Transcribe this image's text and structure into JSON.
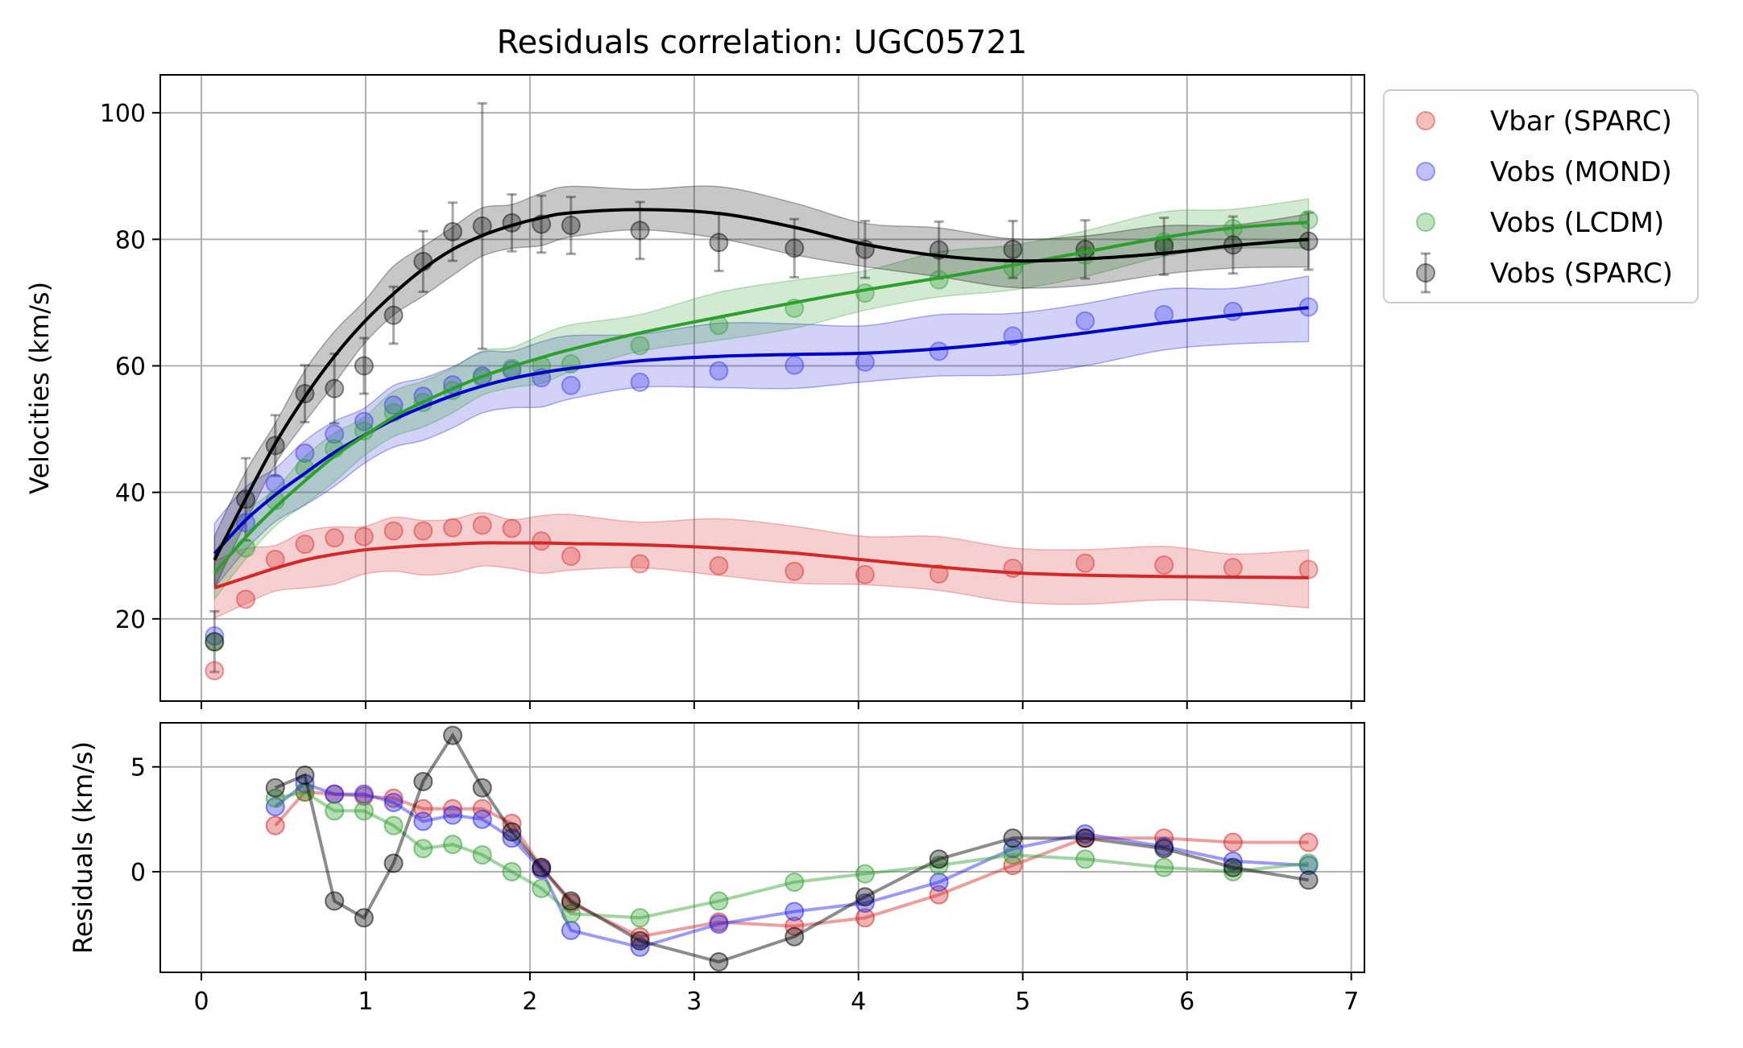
{
  "chart_data": {
    "type": "scatter",
    "title": "Residuals correlation: UGC05721",
    "x": [
      0.08,
      0.27,
      0.45,
      0.63,
      0.81,
      0.99,
      1.17,
      1.35,
      1.53,
      1.71,
      1.89,
      2.07,
      2.25,
      2.67,
      3.15,
      3.61,
      4.04,
      4.49,
      4.94,
      5.38,
      5.86,
      6.28,
      6.74
    ],
    "top_panel": {
      "ylabel": "Velocities (km/s)",
      "ylim": [
        7,
        106
      ],
      "yticks": [
        20,
        40,
        60,
        80,
        100
      ],
      "series": [
        {
          "name": "Vbar (SPARC)",
          "color": "#d62728",
          "points": [
            11.8,
            23.1,
            29.4,
            31.8,
            32.8,
            33.0,
            33.9,
            33.9,
            34.4,
            34.8,
            34.3,
            32.3,
            29.9,
            28.7,
            28.4,
            27.5,
            27.0,
            27.1,
            28.0,
            28.8,
            28.5,
            28.1,
            27.8
          ],
          "fit": [
            24.9,
            26.5,
            28.0,
            29.3,
            30.2,
            30.9,
            31.3,
            31.6,
            31.8,
            32.0,
            32.0,
            32.0,
            31.9,
            31.7,
            31.2,
            30.4,
            29.3,
            28.2,
            27.3,
            26.9,
            26.7,
            26.6,
            26.5
          ],
          "band": 4.2
        },
        {
          "name": "Vobs (MOND)",
          "color": "#0000cc",
          "points": [
            17.3,
            35.2,
            41.4,
            46.2,
            49.2,
            51.2,
            53.8,
            55.2,
            57.0,
            58.4,
            59.3,
            58.1,
            56.9,
            57.4,
            59.2,
            60.1,
            60.6,
            62.3,
            64.7,
            67.1,
            68.1,
            68.6,
            69.3
          ],
          "fit": [
            30.3,
            35.6,
            39.6,
            43.0,
            46.3,
            49.0,
            51.5,
            53.5,
            55.3,
            56.8,
            58.0,
            58.9,
            59.6,
            60.8,
            61.5,
            61.8,
            62.0,
            62.7,
            63.8,
            65.2,
            66.8,
            68.0,
            69.2
          ],
          "band": 4.8
        },
        {
          "name": "Vobs (LCDM)",
          "color": "#2ca02c",
          "points": [
            16.3,
            31.2,
            38.7,
            43.8,
            46.9,
            49.7,
            52.6,
            54.2,
            56.1,
            58.1,
            59.6,
            60.0,
            60.3,
            63.2,
            66.4,
            69.1,
            71.5,
            73.6,
            75.5,
            77.5,
            79.6,
            81.7,
            83.1
          ],
          "fit": [
            27.2,
            32.9,
            37.6,
            41.8,
            45.7,
            48.9,
            51.9,
            54.3,
            56.4,
            58.3,
            59.9,
            61.3,
            62.6,
            65.2,
            67.7,
            70.0,
            72.0,
            73.9,
            75.9,
            78.0,
            80.3,
            81.8,
            82.7
          ],
          "band": 3.5
        },
        {
          "name": "Vobs (SPARC)",
          "color": "#000000",
          "points": [
            16.4,
            38.9,
            47.4,
            55.6,
            56.4,
            60.0,
            68.0,
            76.5,
            81.2,
            82.1,
            82.6,
            82.4,
            82.2,
            81.4,
            79.5,
            78.6,
            78.4,
            78.3,
            78.4,
            78.4,
            78.9,
            79.1,
            79.7
          ],
          "errors": [
            4.8,
            6.5,
            4.8,
            4.5,
            5.5,
            4.4,
            4.5,
            4.8,
            4.6,
            19.4,
            4.5,
            4.5,
            4.5,
            4.5,
            4.5,
            4.6,
            4.5,
            4.5,
            4.5,
            4.6,
            4.5,
            4.5,
            4.5
          ],
          "fit": [
            29.3,
            39.0,
            47.7,
            55.1,
            61.5,
            66.9,
            71.4,
            75.3,
            78.4,
            80.6,
            82.2,
            83.4,
            84.2,
            84.7,
            84.1,
            81.9,
            79.2,
            77.4,
            76.6,
            76.9,
            77.8,
            79.0,
            80.0
          ],
          "band": 3.8
        }
      ]
    },
    "bottom_panel": {
      "ylabel": "Residuals (km/s)",
      "ylim": [
        -4.8,
        7.1
      ],
      "yticks": [
        0,
        5
      ],
      "x_start_index": 2,
      "series": [
        {
          "name": "Vbar (SPARC)",
          "color": "#d62728",
          "values": [
            2.2,
            3.8,
            3.7,
            3.6,
            3.5,
            3.0,
            3.0,
            3.0,
            2.3,
            0.2,
            -1.5,
            -3.1,
            -2.4,
            -2.6,
            -2.2,
            -1.1,
            0.3,
            1.6,
            1.6,
            1.4,
            1.4
          ]
        },
        {
          "name": "Vobs (MOND)",
          "color": "#0000cc",
          "values": [
            3.1,
            4.2,
            3.7,
            3.7,
            3.3,
            2.4,
            2.7,
            2.5,
            1.6,
            0.1,
            -2.8,
            -3.6,
            -2.5,
            -1.9,
            -1.5,
            -0.5,
            1.1,
            1.8,
            1.2,
            0.5,
            0.3
          ]
        },
        {
          "name": "Vobs (LCDM)",
          "color": "#2ca02c",
          "values": [
            3.5,
            3.8,
            2.9,
            2.9,
            2.2,
            1.1,
            1.3,
            0.8,
            0.0,
            -0.8,
            -2.0,
            -2.2,
            -1.4,
            -0.5,
            -0.1,
            0.3,
            0.8,
            0.6,
            0.2,
            0.0,
            0.4
          ]
        },
        {
          "name": "Vobs (SPARC)",
          "color": "#000000",
          "values": [
            4.0,
            4.6,
            -1.4,
            -2.2,
            0.4,
            4.3,
            6.5,
            4.0,
            1.9,
            0.2,
            -1.4,
            -3.3,
            -4.3,
            -3.1,
            -1.2,
            0.6,
            1.6,
            1.6,
            1.1,
            0.2,
            -0.4
          ]
        }
      ]
    },
    "xlim": [
      -0.25,
      7.08
    ],
    "xticks": [
      0,
      1,
      2,
      3,
      4,
      5,
      6,
      7
    ],
    "grid": true,
    "legend": {
      "placement": "outside-top-right",
      "entries": [
        "Vbar (SPARC)",
        "Vobs (MOND)",
        "Vobs (LCDM)",
        "Vobs (SPARC)"
      ]
    }
  }
}
